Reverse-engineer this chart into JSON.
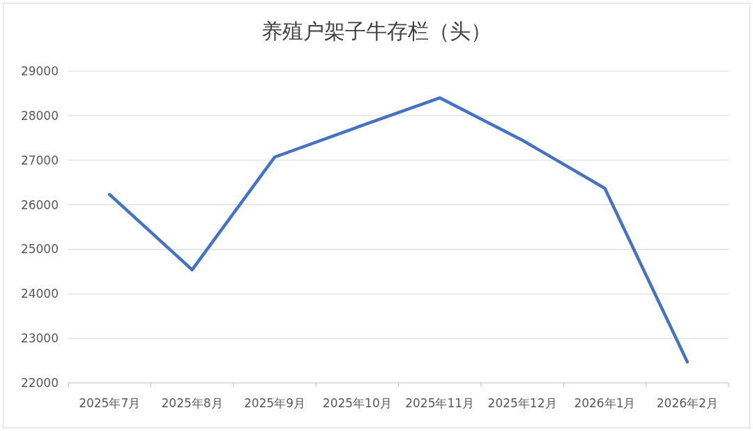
{
  "chart_data": {
    "type": "line",
    "title": "养殖户架子牛存栏（头）",
    "categories": [
      "2025年7月",
      "2025年8月",
      "2025年9月",
      "2025年10月",
      "2025年11月",
      "2025年12月",
      "2026年1月",
      "2026年2月"
    ],
    "series": [
      {
        "color": "#4472c4",
        "values": [
          26230,
          24540,
          27070,
          27740,
          28400,
          27450,
          26370,
          22470
        ]
      }
    ],
    "ylim": [
      22000,
      29000
    ],
    "yticks": [
      22000,
      23000,
      24000,
      25000,
      26000,
      27000,
      28000,
      29000
    ],
    "grid": "y",
    "marker": "none",
    "line_style": "solid"
  }
}
